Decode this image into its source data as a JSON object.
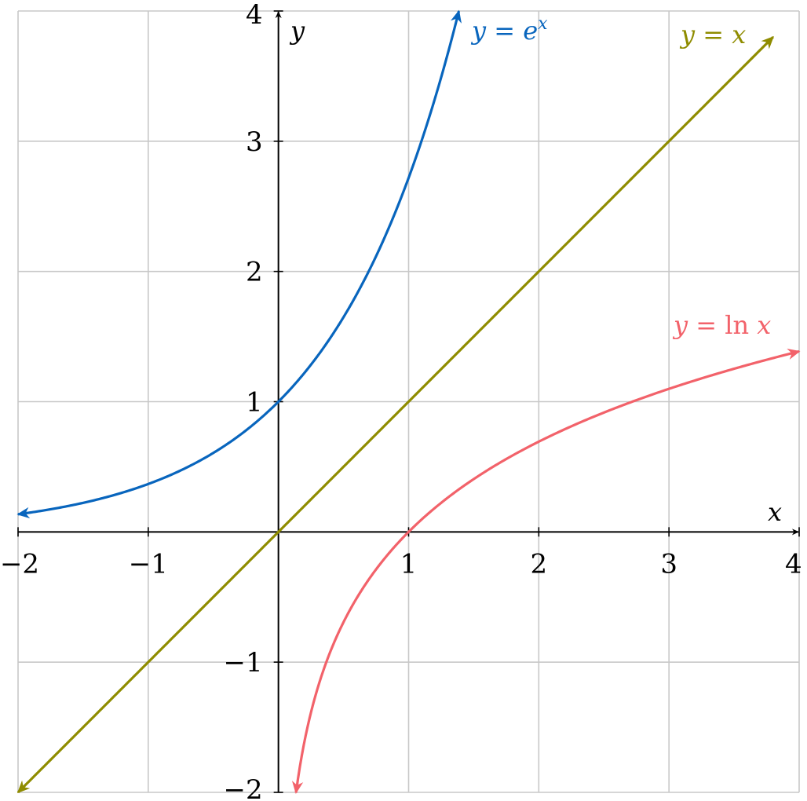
{
  "chart_data": {
    "type": "line",
    "title": "",
    "xlabel": "x",
    "ylabel": "y",
    "xlim": [
      -2,
      4
    ],
    "ylim": [
      -2,
      4
    ],
    "grid": true,
    "x_ticks": [
      "−2",
      "−1",
      "1",
      "2",
      "3",
      "4"
    ],
    "y_ticks": [
      "−2",
      "−1",
      "1",
      "2",
      "3",
      "4"
    ],
    "series": [
      {
        "name": "y = e^x",
        "label_parts": [
          "y",
          " = e",
          "x"
        ],
        "function": "exp",
        "color": "#0865bd",
        "x_range": [
          -2,
          1.386
        ],
        "x": [
          -2,
          -1,
          0,
          0.5,
          1,
          1.386
        ],
        "y": [
          0.135,
          0.368,
          1,
          1.649,
          2.718,
          4
        ]
      },
      {
        "name": "y = x",
        "label_parts": [
          "y",
          " = ",
          "x"
        ],
        "function": "identity",
        "color": "#8f8c00",
        "x_range": [
          -2,
          3.8
        ],
        "x": [
          -2,
          -1,
          0,
          1,
          2,
          3,
          3.8
        ],
        "y": [
          -2,
          -1,
          0,
          1,
          2,
          3,
          3.8
        ]
      },
      {
        "name": "y = ln x",
        "label_parts": [
          "y",
          " = ln ",
          "x"
        ],
        "function": "ln",
        "color": "#f2626a",
        "x_range": [
          0.135,
          4
        ],
        "x": [
          0.135,
          0.5,
          1,
          2,
          3,
          4
        ],
        "y": [
          -2,
          -0.693,
          0,
          0.693,
          1.099,
          1.386
        ]
      }
    ]
  }
}
